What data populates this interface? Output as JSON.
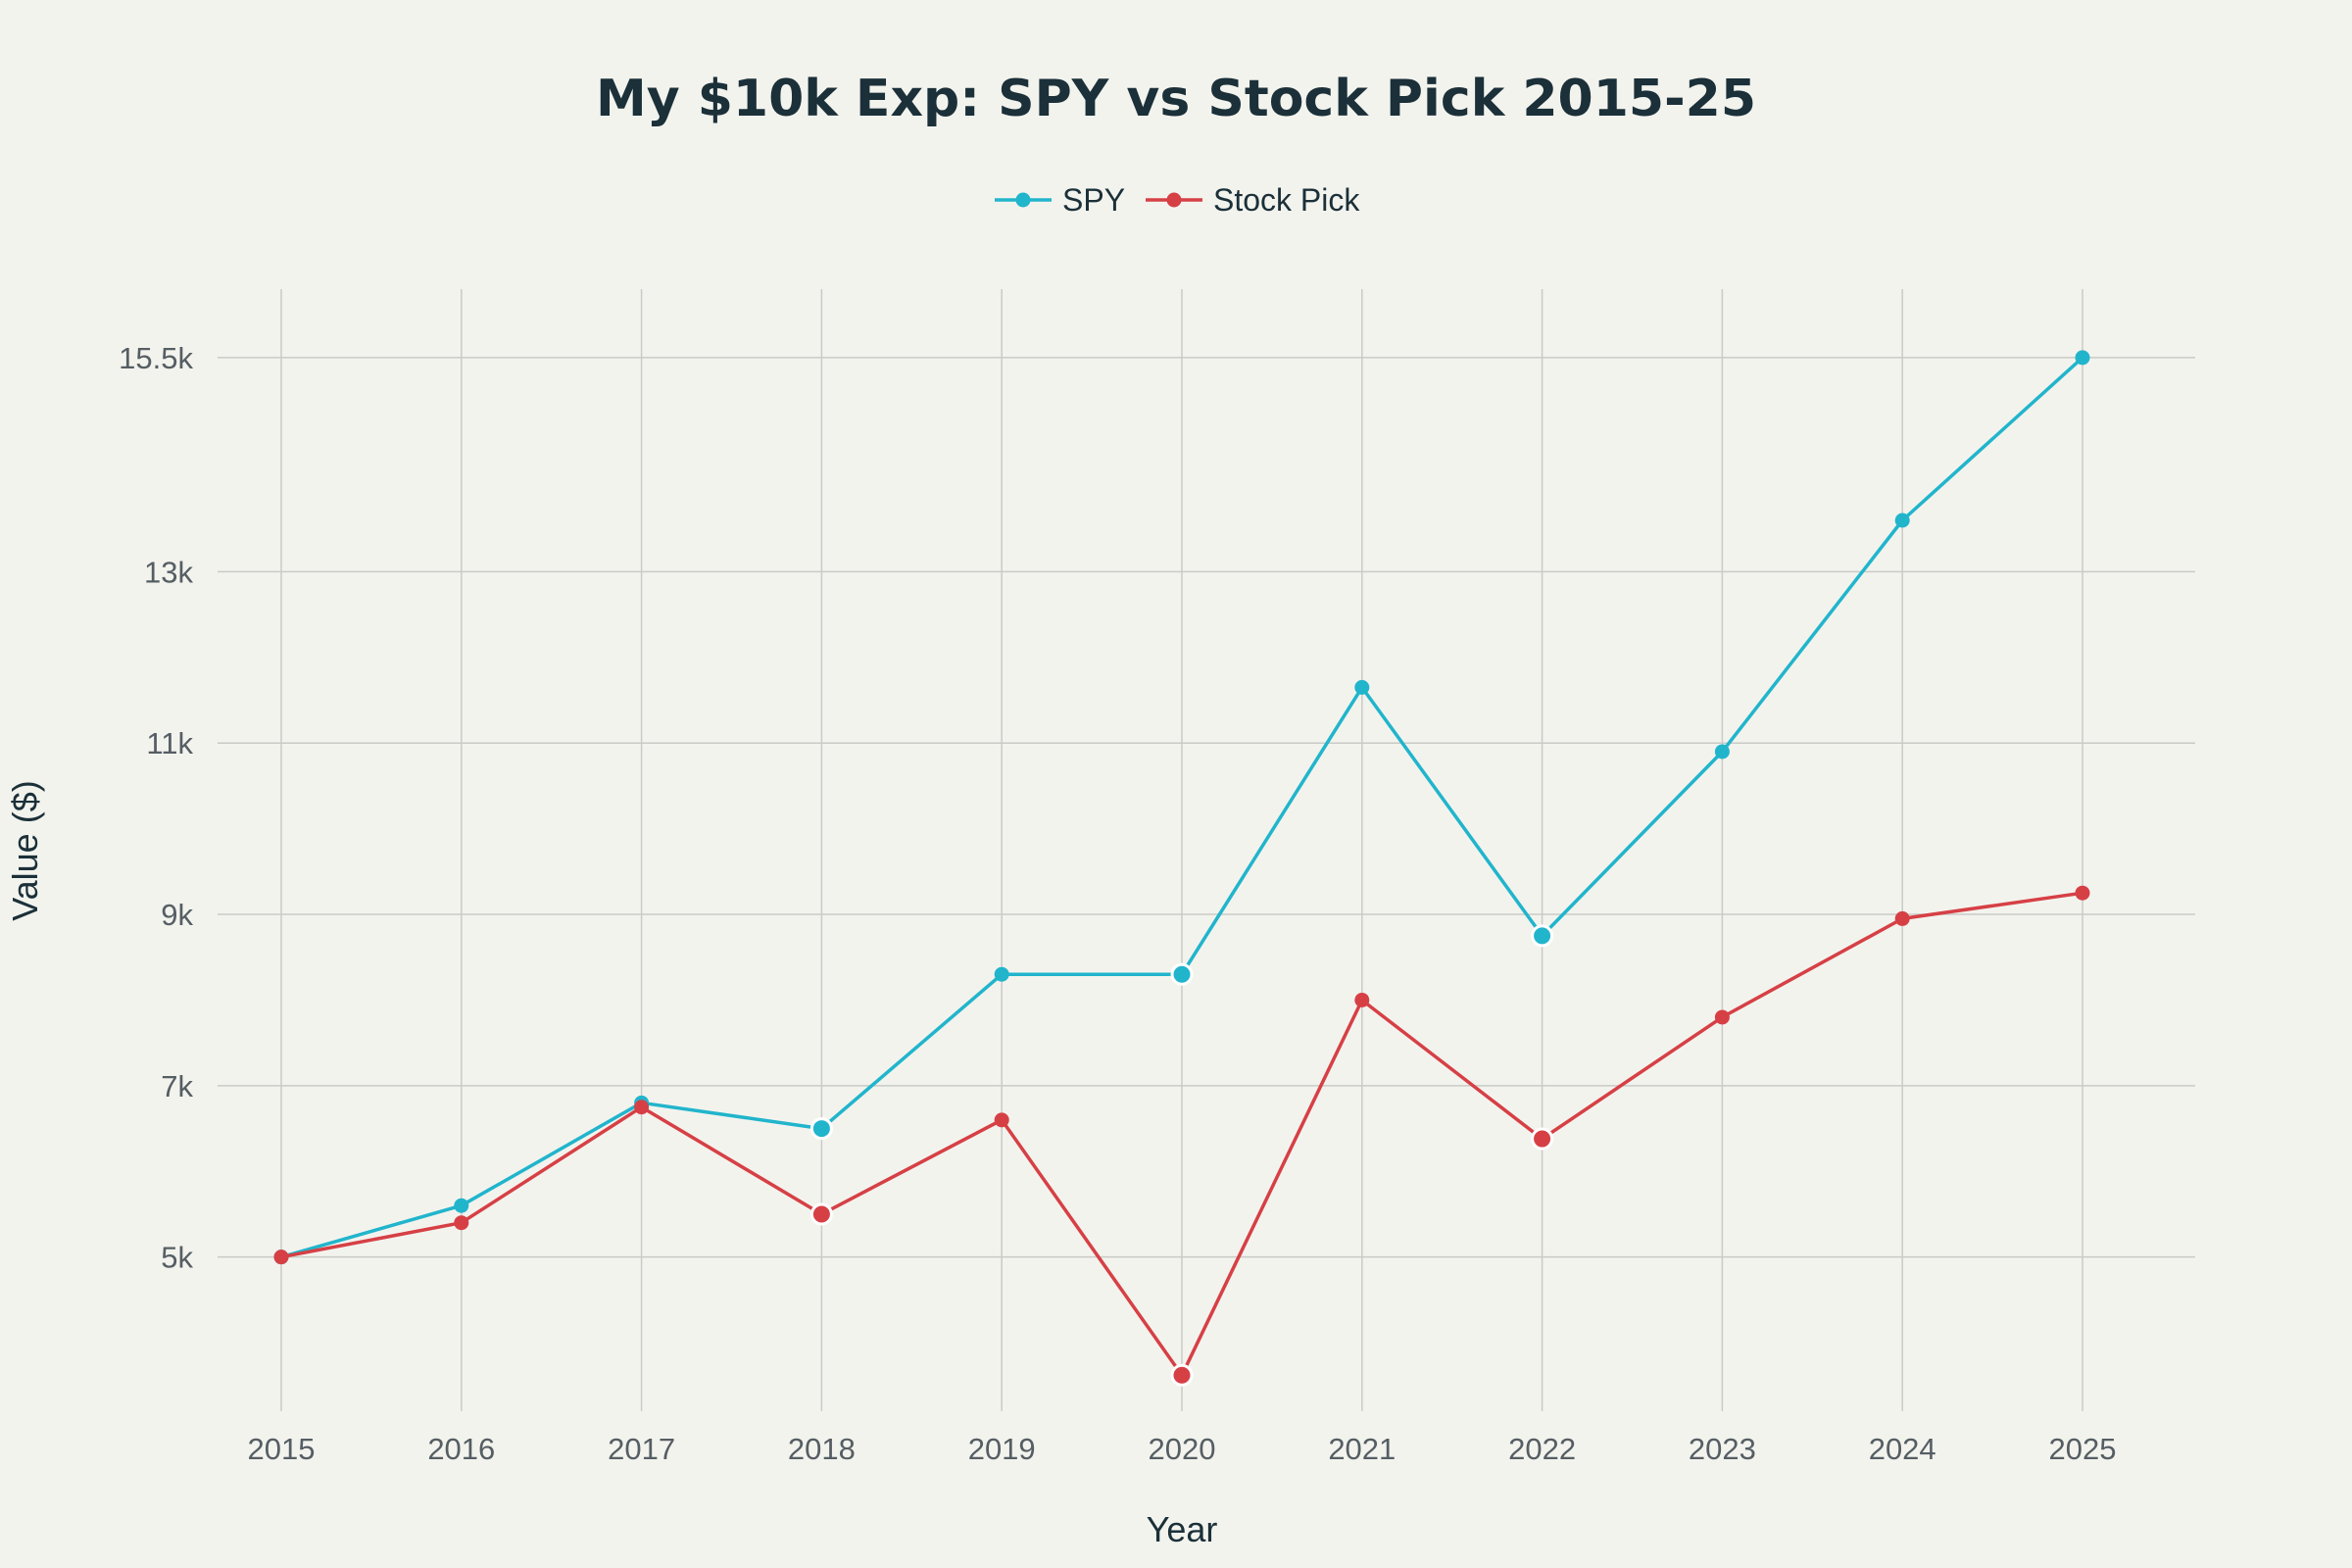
{
  "chart_data": {
    "type": "line",
    "title": "My $10k Exp: SPY vs Stock Pick 2015-25",
    "xlabel": "Year",
    "ylabel": "Value ($)",
    "categories": [
      "2015",
      "2016",
      "2017",
      "2018",
      "2019",
      "2020",
      "2021",
      "2022",
      "2023",
      "2024",
      "2025"
    ],
    "ylim": [
      3200,
      16300
    ],
    "yticks": [
      5000,
      7000,
      9000,
      11000,
      13000,
      15500
    ],
    "ytick_labels": [
      "5k",
      "7k",
      "9k",
      "11k",
      "13k",
      "15.5k"
    ],
    "grid": true,
    "legend_position": "top-center",
    "series": [
      {
        "name": "SPY",
        "color": "#21b5cc",
        "values": [
          5000,
          5600,
          6800,
          6500,
          8300,
          8300,
          11650,
          8750,
          10900,
          13600,
          15500
        ],
        "emphasized_points": [
          3,
          5,
          7
        ]
      },
      {
        "name": "Stock Pick",
        "color": "#d64045",
        "values": [
          5000,
          5400,
          6750,
          5500,
          6600,
          3620,
          8000,
          6380,
          7800,
          8950,
          9250
        ],
        "emphasized_points": [
          3,
          5,
          7
        ]
      }
    ]
  }
}
